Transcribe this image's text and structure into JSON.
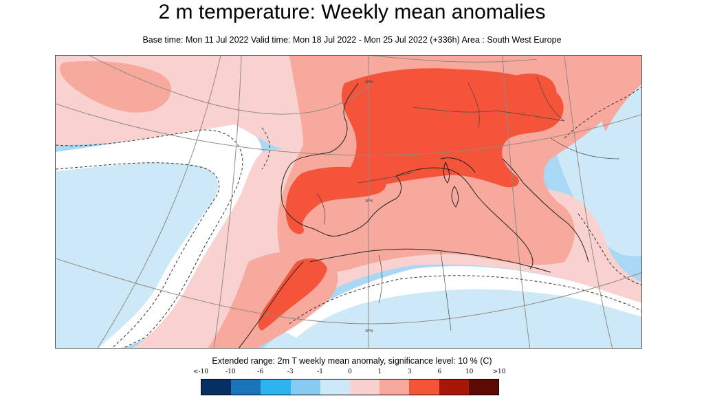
{
  "title": "2 m temperature: Weekly mean anomalies",
  "subtitle": "Base time: Mon 11 Jul 2022 Valid time: Mon 18 Jul 2022 - Mon 25 Jul 2022 (+336h) Area : South West Europe",
  "map": {
    "area": "South West Europe",
    "grid_labels": [
      "50°N",
      "40°N",
      "30°N"
    ]
  },
  "legend": {
    "title": "Extended range: 2m T weekly mean anomaly, significance level: 10 % (C)",
    "labels": [
      "<-10",
      "-10",
      "-6",
      "-3",
      "-1",
      "0",
      "1",
      "3",
      "6",
      "10",
      ">10"
    ],
    "colors": [
      "#053061",
      "#1a74b8",
      "#2cb4f0",
      "#86ccf2",
      "#cde9f8",
      "#f9d2d0",
      "#f7a99e",
      "#f4543a",
      "#a81608",
      "#5c0a04"
    ]
  }
}
